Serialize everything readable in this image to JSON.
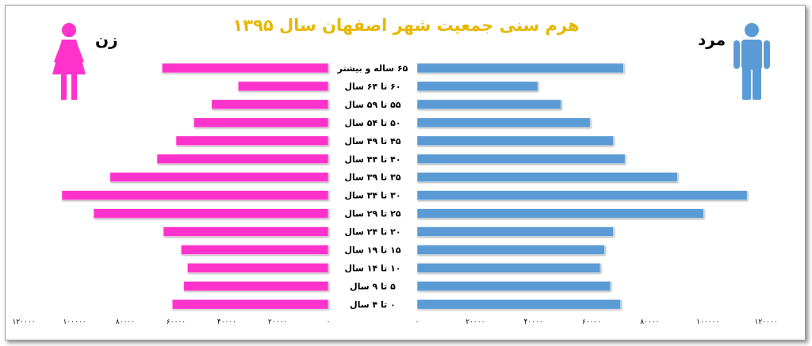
{
  "title": "هرم سنی جمعیت شهر اصفهان سال ۱۳۹۵",
  "labels": {
    "female": "زن",
    "male": "مرد"
  },
  "colors": {
    "female": "#ff33cc",
    "male": "#5b9bd5",
    "title": "#e6b800"
  },
  "icons": {
    "female": "female-person-icon",
    "male": "male-person-icon"
  },
  "chart_data": {
    "type": "bar",
    "orientation": "horizontal-population-pyramid",
    "categories": [
      "۶۵ ساله و بیشتر",
      "۶۰ تا ۶۴ سال",
      "۵۵ تا ۵۹ سال",
      "۵۰ تا ۵۴ سال",
      "۴۵ تا ۴۹ سال",
      "۴۰ تا ۴۴ سال",
      "۳۵ تا ۳۹ سال",
      "۳۰ تا ۳۴ سال",
      "۲۵ تا ۲۹ سال",
      "۲۰ تا ۲۴ سال",
      "۱۵ تا ۱۹ سال",
      "۱۰ تا ۱۴ سال",
      "۵ تا ۹ سال",
      "۰ تا ۴ سال"
    ],
    "series": [
      {
        "name": "زن",
        "values": [
          65500,
          35500,
          46000,
          53000,
          60000,
          67500,
          86000,
          105000,
          92500,
          65000,
          58000,
          55500,
          57000,
          61500
        ]
      },
      {
        "name": "مرد",
        "values": [
          71000,
          41500,
          49500,
          59500,
          67500,
          71500,
          89500,
          113500,
          98500,
          67500,
          64500,
          63000,
          66500,
          70000
        ]
      }
    ],
    "xlim": [
      0,
      120000
    ],
    "female_ticks": [
      "۱۲۰۰۰۰",
      "۱۰۰۰۰۰",
      "۸۰۰۰۰",
      "۶۰۰۰۰",
      "۴۰۰۰۰",
      "۲۰۰۰۰",
      "۰"
    ],
    "male_ticks": [
      "۰",
      "۲۰۰۰۰",
      "۴۰۰۰۰",
      "۶۰۰۰۰",
      "۸۰۰۰۰",
      "۱۰۰۰۰۰",
      "۱۲۰۰۰۰"
    ],
    "tick_values": [
      120000,
      100000,
      80000,
      60000,
      40000,
      20000,
      0
    ],
    "grid": false,
    "legend": "icons"
  }
}
